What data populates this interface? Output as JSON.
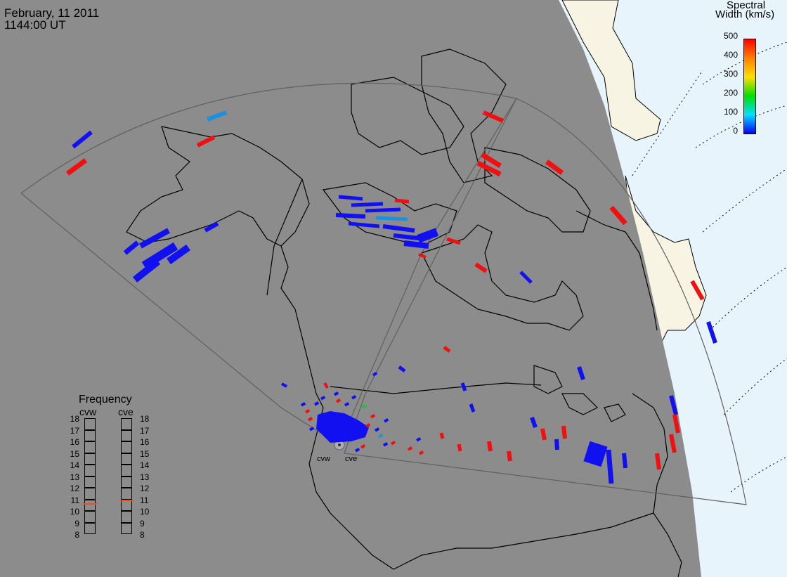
{
  "header": {
    "date": "February, 11 2011",
    "time": "1144:00 UT"
  },
  "colorbar": {
    "title_line1": "Spectral",
    "title_line2": "Width (km/s)",
    "ticks": [
      "500",
      "400",
      "300",
      "200",
      "100",
      "0"
    ],
    "min": 0,
    "max": 500,
    "colors": [
      "#0000ff",
      "#00e0ff",
      "#00e000",
      "#ffe000",
      "#ff8000",
      "#ff0000"
    ]
  },
  "frequency": {
    "title": "Frequency",
    "radar_left": "cvw",
    "radar_right": "cve",
    "ticks": [
      "18",
      "17",
      "16",
      "15",
      "14",
      "13",
      "12",
      "11",
      "10",
      "9",
      "8"
    ],
    "range": [
      8,
      18
    ],
    "cvw_value": 10.6,
    "cve_value": 10.9,
    "marker_color": "#e85020"
  },
  "radars": {
    "west": "cvw",
    "east": "cve"
  },
  "map": {
    "nightside_color": "#8c8c8c",
    "dayside_land_color": "#f8f4e4",
    "dayside_ocean_color": "#e8f4fc",
    "coastline_color": "#000000",
    "fov_color": "#606060"
  },
  "scatter_colors": {
    "low": "#1010f0",
    "mid": "#1e90e0",
    "green": "#20c040",
    "high": "#f01010"
  }
}
